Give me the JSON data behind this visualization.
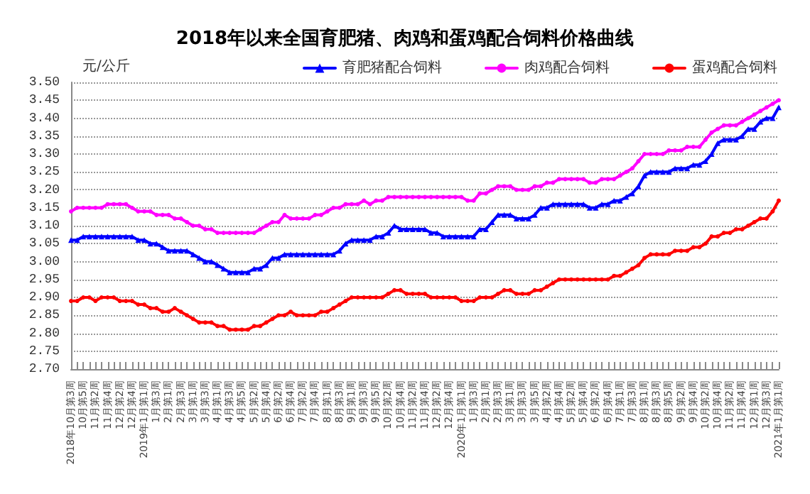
{
  "chart_data": {
    "type": "line",
    "title": "2018年以来全国育肥猪、肉鸡和蛋鸡配合饲料价格曲线",
    "ylabel": "元/公斤",
    "categories": [
      "2018年10月第3周",
      null,
      "10月第5周",
      null,
      "11月第2周",
      null,
      "11月第4周",
      null,
      "12月第2周",
      null,
      "12月第4周",
      null,
      "2019年1月第1周",
      null,
      "1月第3周",
      null,
      "2月第1周",
      null,
      "2月第3周",
      null,
      "3月第1周",
      null,
      "3月第3周",
      null,
      "4月第1周",
      null,
      "4月第3周",
      null,
      "4月第5周",
      null,
      "5月第2周",
      null,
      "5月第4周",
      null,
      "6月第2周",
      null,
      "6月第4周",
      null,
      "7月第2周",
      null,
      "7月第4周",
      null,
      "8月第1周",
      null,
      "8月第3周",
      null,
      "9月第1周",
      null,
      "9月第3周",
      null,
      "9月第5周",
      null,
      "10月第2周",
      null,
      "10月第4周",
      null,
      "11月第2周",
      null,
      "11月第4周",
      null,
      "12月第2周",
      null,
      "12月第4周",
      null,
      "2020年1月第1周",
      null,
      "1月第3周",
      null,
      "2月第1周",
      null,
      "2月第3周",
      null,
      "3月第1周",
      null,
      "3月第3周",
      null,
      "3月第5周",
      null,
      "4月第2周",
      null,
      "4月第4周",
      null,
      "5月第2周",
      null,
      "5月第4周",
      null,
      "6月第2周",
      null,
      "6月第4周",
      null,
      "7月第1周",
      null,
      "7月第3周",
      null,
      "8月第1周",
      null,
      "8月第3周",
      null,
      "8月第5周",
      null,
      "9月第2周",
      null,
      "9月第4周",
      null,
      "10月第2周",
      null,
      "10月第4周",
      null,
      "11月第2周",
      null,
      "11月第4周",
      null,
      "12月第1周",
      null,
      "12月第3周",
      null,
      "2021年1月第1周"
    ],
    "series": [
      {
        "name": "育肥猪配合饲料",
        "color": "#0000ff",
        "marker": "triangle",
        "values": [
          3.06,
          3.06,
          3.07,
          3.07,
          3.07,
          3.07,
          3.07,
          3.07,
          3.07,
          3.07,
          3.07,
          3.06,
          3.06,
          3.05,
          3.05,
          3.04,
          3.03,
          3.03,
          3.03,
          3.03,
          3.02,
          3.01,
          3.0,
          3.0,
          2.99,
          2.98,
          2.97,
          2.97,
          2.97,
          2.97,
          2.98,
          2.98,
          2.99,
          3.01,
          3.01,
          3.02,
          3.02,
          3.02,
          3.02,
          3.02,
          3.02,
          3.02,
          3.02,
          3.02,
          3.03,
          3.05,
          3.06,
          3.06,
          3.06,
          3.06,
          3.07,
          3.07,
          3.08,
          3.1,
          3.09,
          3.09,
          3.09,
          3.09,
          3.09,
          3.08,
          3.08,
          3.07,
          3.07,
          3.07,
          3.07,
          3.07,
          3.07,
          3.09,
          3.09,
          3.11,
          3.13,
          3.13,
          3.13,
          3.12,
          3.12,
          3.12,
          3.13,
          3.15,
          3.15,
          3.16,
          3.16,
          3.16,
          3.16,
          3.16,
          3.16,
          3.15,
          3.15,
          3.16,
          3.16,
          3.17,
          3.17,
          3.18,
          3.19,
          3.21,
          3.24,
          3.25,
          3.25,
          3.25,
          3.25,
          3.26,
          3.26,
          3.26,
          3.27,
          3.27,
          3.28,
          3.3,
          3.33,
          3.34,
          3.34,
          3.34,
          3.35,
          3.37,
          3.37,
          3.39,
          3.4,
          3.4,
          3.43
        ]
      },
      {
        "name": "肉鸡配合饲料",
        "color": "#ff00ff",
        "marker": "circle",
        "values": [
          3.14,
          3.15,
          3.15,
          3.15,
          3.15,
          3.15,
          3.16,
          3.16,
          3.16,
          3.16,
          3.15,
          3.14,
          3.14,
          3.14,
          3.13,
          3.13,
          3.13,
          3.12,
          3.12,
          3.11,
          3.1,
          3.1,
          3.09,
          3.09,
          3.08,
          3.08,
          3.08,
          3.08,
          3.08,
          3.08,
          3.08,
          3.09,
          3.1,
          3.11,
          3.11,
          3.13,
          3.12,
          3.12,
          3.12,
          3.12,
          3.13,
          3.13,
          3.14,
          3.15,
          3.15,
          3.16,
          3.16,
          3.16,
          3.17,
          3.16,
          3.17,
          3.17,
          3.18,
          3.18,
          3.18,
          3.18,
          3.18,
          3.18,
          3.18,
          3.18,
          3.18,
          3.18,
          3.18,
          3.18,
          3.18,
          3.17,
          3.17,
          3.19,
          3.19,
          3.2,
          3.21,
          3.21,
          3.21,
          3.2,
          3.2,
          3.2,
          3.21,
          3.21,
          3.22,
          3.22,
          3.23,
          3.23,
          3.23,
          3.23,
          3.23,
          3.22,
          3.22,
          3.23,
          3.23,
          3.23,
          3.24,
          3.25,
          3.26,
          3.28,
          3.3,
          3.3,
          3.3,
          3.3,
          3.31,
          3.31,
          3.31,
          3.32,
          3.32,
          3.32,
          3.34,
          3.36,
          3.37,
          3.38,
          3.38,
          3.38,
          3.39,
          3.4,
          3.41,
          3.42,
          3.43,
          3.44,
          3.45
        ]
      },
      {
        "name": "蛋鸡配合饲料",
        "color": "#ff0000",
        "marker": "circle",
        "values": [
          2.89,
          2.89,
          2.9,
          2.9,
          2.89,
          2.9,
          2.9,
          2.9,
          2.89,
          2.89,
          2.89,
          2.88,
          2.88,
          2.87,
          2.87,
          2.86,
          2.86,
          2.87,
          2.86,
          2.85,
          2.84,
          2.83,
          2.83,
          2.83,
          2.82,
          2.82,
          2.81,
          2.81,
          2.81,
          2.81,
          2.82,
          2.82,
          2.83,
          2.84,
          2.85,
          2.85,
          2.86,
          2.85,
          2.85,
          2.85,
          2.85,
          2.86,
          2.86,
          2.87,
          2.88,
          2.89,
          2.9,
          2.9,
          2.9,
          2.9,
          2.9,
          2.9,
          2.91,
          2.92,
          2.92,
          2.91,
          2.91,
          2.91,
          2.91,
          2.9,
          2.9,
          2.9,
          2.9,
          2.9,
          2.89,
          2.89,
          2.89,
          2.9,
          2.9,
          2.9,
          2.91,
          2.92,
          2.92,
          2.91,
          2.91,
          2.91,
          2.92,
          2.92,
          2.93,
          2.94,
          2.95,
          2.95,
          2.95,
          2.95,
          2.95,
          2.95,
          2.95,
          2.95,
          2.95,
          2.96,
          2.96,
          2.97,
          2.98,
          2.99,
          3.01,
          3.02,
          3.02,
          3.02,
          3.02,
          3.03,
          3.03,
          3.03,
          3.04,
          3.04,
          3.05,
          3.07,
          3.07,
          3.08,
          3.08,
          3.09,
          3.09,
          3.1,
          3.11,
          3.12,
          3.12,
          3.14,
          3.17
        ]
      }
    ],
    "ylim": [
      2.7,
      3.5
    ],
    "yticks": [
      {
        "value": 2.7,
        "label": "2.70"
      },
      2.75,
      {
        "value": 2.8,
        "label": "2.80"
      },
      2.85,
      {
        "value": 2.9,
        "label": "2.90"
      },
      2.95,
      {
        "value": 3.0,
        "label": "3.00"
      },
      3.05,
      {
        "value": 3.1,
        "label": "3.10"
      },
      3.15,
      {
        "value": 3.2,
        "label": "3.20"
      },
      3.25,
      {
        "value": 3.3,
        "label": "3.30"
      },
      3.35,
      {
        "value": 3.4,
        "label": "3.40"
      },
      3.45,
      {
        "value": 3.5,
        "label": "3.50"
      }
    ],
    "grid": "y",
    "legend": "top right",
    "line_style": "solid"
  }
}
